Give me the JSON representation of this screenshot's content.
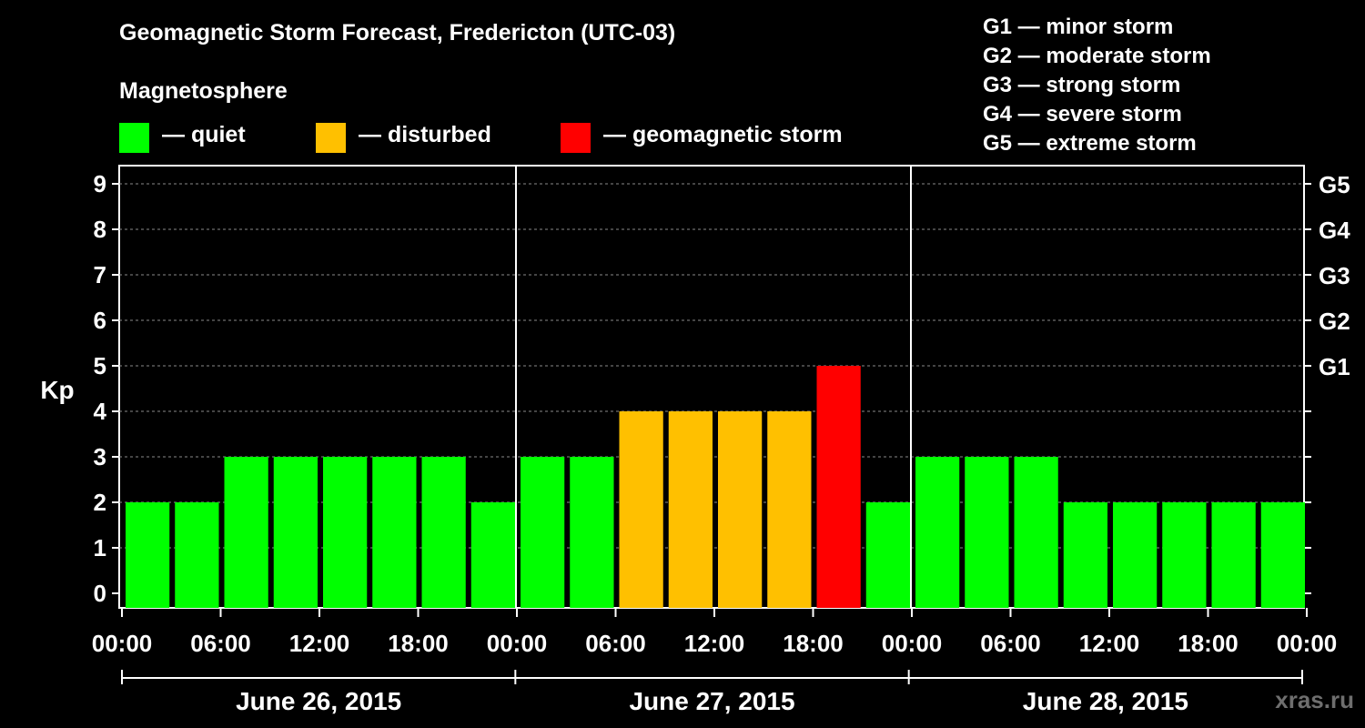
{
  "chart_data": {
    "type": "bar",
    "title": "Geomagnetic Storm Forecast, Fredericton (UTC-03)",
    "ylabel": "Kp",
    "ylim": [
      0,
      9
    ],
    "yticks": [
      "0",
      "1",
      "2",
      "3",
      "4",
      "5",
      "6",
      "7",
      "8",
      "9"
    ],
    "grid": true,
    "right_axis": [
      {
        "kp": 5,
        "label": "G1"
      },
      {
        "kp": 6,
        "label": "G2"
      },
      {
        "kp": 7,
        "label": "G3"
      },
      {
        "kp": 8,
        "label": "G4"
      },
      {
        "kp": 9,
        "label": "G5"
      }
    ],
    "time_ticks": [
      "00:00",
      "06:00",
      "12:00",
      "18:00",
      "00:00",
      "06:00",
      "12:00",
      "18:00",
      "00:00",
      "06:00",
      "12:00",
      "18:00",
      "00:00"
    ],
    "days": [
      "June 26, 2015",
      "June 27, 2015",
      "June 28, 2015"
    ],
    "bars_per_day": 8,
    "interval_hours": 3,
    "values": [
      2,
      2,
      3,
      3,
      3,
      3,
      3,
      2,
      3,
      3,
      4,
      4,
      4,
      4,
      5,
      2,
      3,
      3,
      3,
      2,
      2,
      2,
      2,
      2
    ],
    "status": [
      "quiet",
      "quiet",
      "quiet",
      "quiet",
      "quiet",
      "quiet",
      "quiet",
      "quiet",
      "quiet",
      "quiet",
      "disturbed",
      "disturbed",
      "disturbed",
      "disturbed",
      "storm",
      "quiet",
      "quiet",
      "quiet",
      "quiet",
      "quiet",
      "quiet",
      "quiet",
      "quiet",
      "quiet"
    ]
  },
  "legend": {
    "title": "Magnetosphere",
    "items": [
      {
        "key": "quiet",
        "label": "— quiet",
        "color": "#00ff00"
      },
      {
        "key": "disturbed",
        "label": "— disturbed",
        "color": "#ffc000"
      },
      {
        "key": "storm",
        "label": "— geomagnetic storm",
        "color": "#ff0000"
      }
    ]
  },
  "storm_scale": [
    "G1 — minor storm",
    "G2 — moderate storm",
    "G3 — strong storm",
    "G4 — severe storm",
    "G5 — extreme storm"
  ],
  "watermark": "xras.ru"
}
